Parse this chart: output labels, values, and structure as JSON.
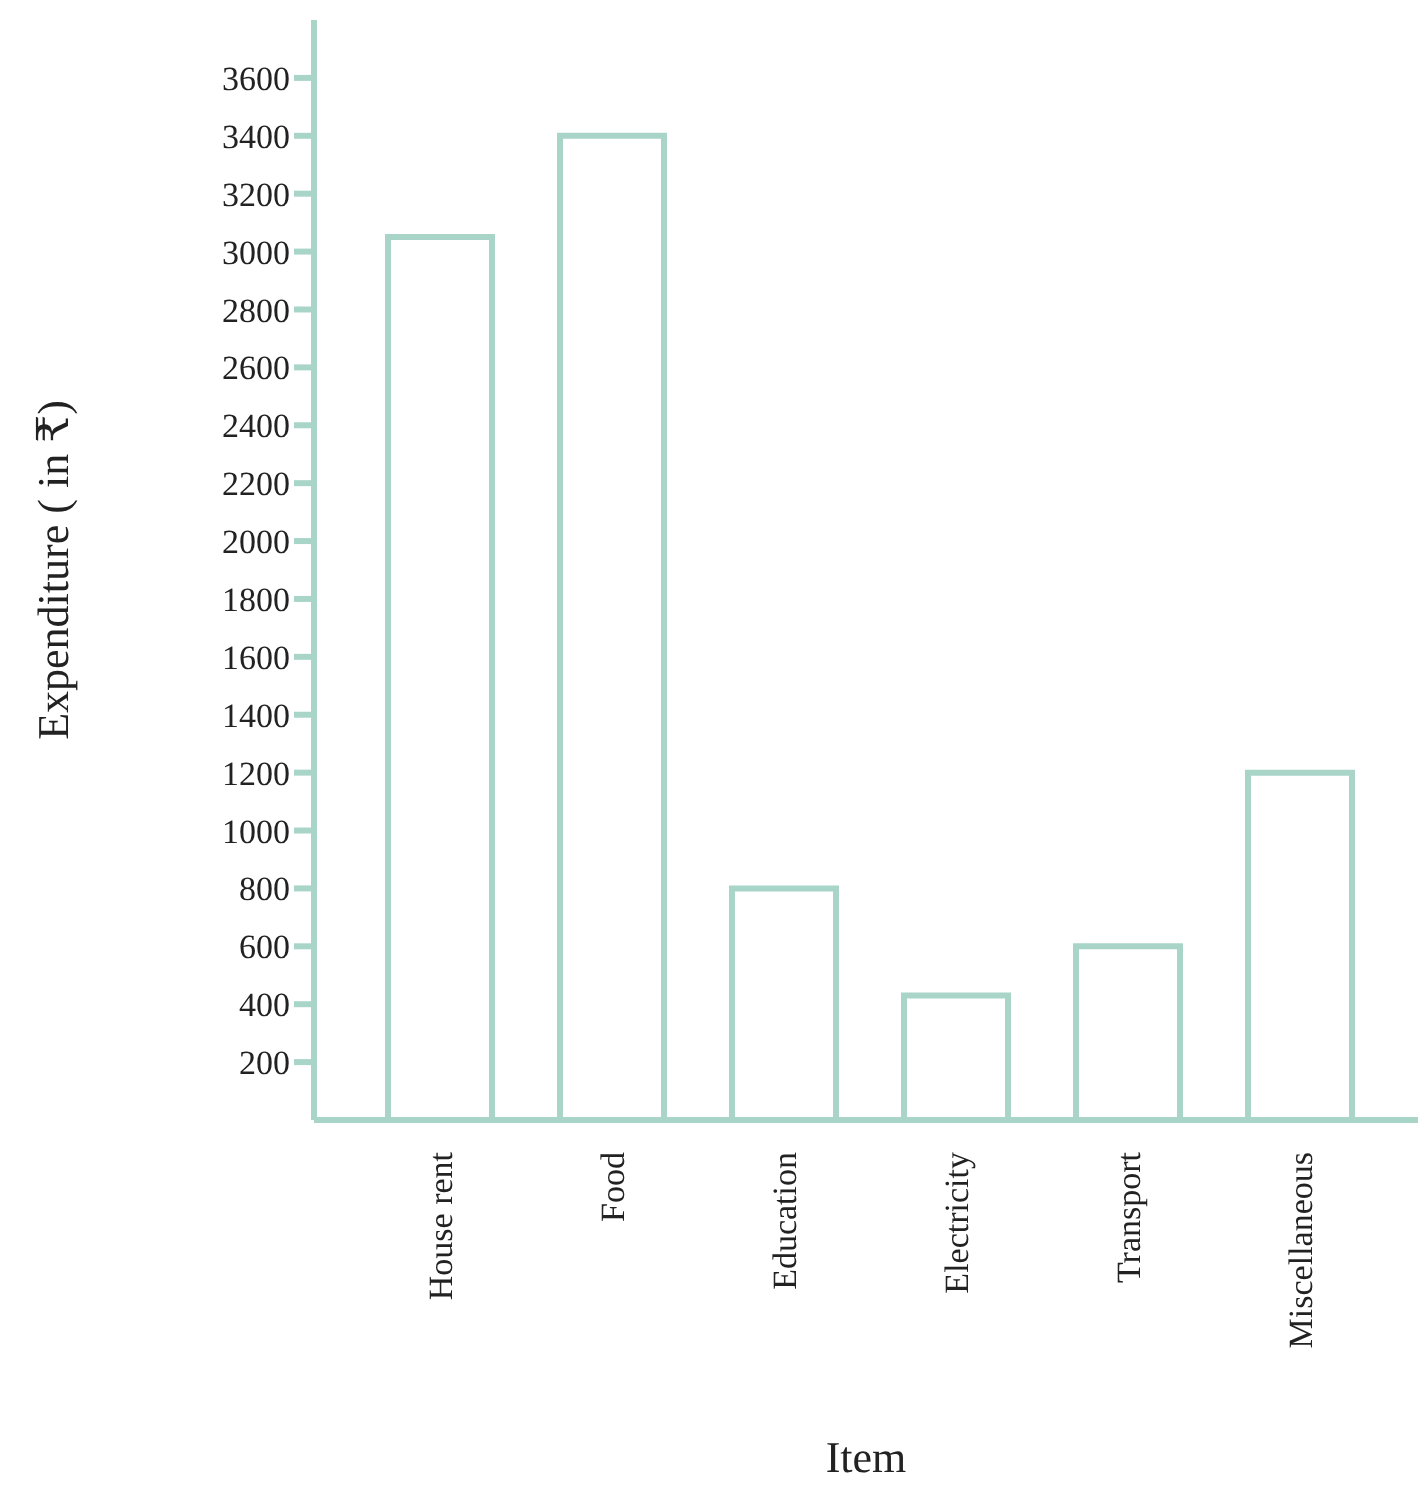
{
  "chart_data": {
    "type": "bar",
    "xlabel": "Item",
    "ylabel": "Expenditure ( in ₹)",
    "categories": [
      "House rent",
      "Food",
      "Education",
      "Electricity",
      "Transport",
      "Miscellaneous"
    ],
    "values": [
      3050,
      3400,
      800,
      430,
      600,
      1200
    ],
    "color": "#a8d5c8",
    "ylim": [
      0,
      3800
    ],
    "yticks": [
      200,
      400,
      600,
      800,
      1000,
      1200,
      1400,
      1600,
      1800,
      2000,
      2200,
      2400,
      2600,
      2800,
      3000,
      3200,
      3400,
      3600
    ],
    "grid": false
  }
}
